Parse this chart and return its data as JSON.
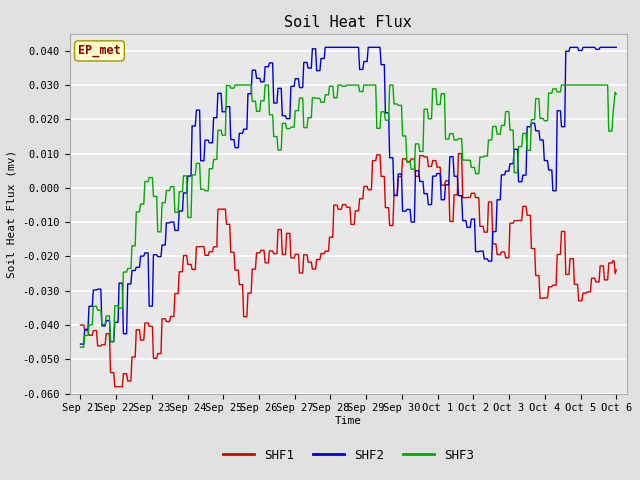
{
  "title": "Soil Heat Flux",
  "ylabel": "Soil Heat Flux (mv)",
  "xlabel": "Time",
  "ylim": [
    -0.06,
    0.045
  ],
  "yticks": [
    -0.06,
    -0.05,
    -0.04,
    -0.03,
    -0.02,
    -0.01,
    0.0,
    0.01,
    0.02,
    0.03,
    0.04
  ],
  "bg_color": "#e0e0e0",
  "plot_bg_color": "#e8e8e8",
  "grid_color": "white",
  "colors": {
    "SHF1": "#dd0000",
    "SHF2": "#0000dd",
    "SHF3": "#00aa00"
  },
  "x_tick_labels": [
    "Sep 21",
    "Sep 22",
    "Sep 23",
    "Sep 24",
    "Sep 25",
    "Sep 26",
    "Sep 27",
    "Sep 28",
    "Sep 29",
    "Sep 30",
    "Oct 1",
    "Oct 2",
    "Oct 3",
    "Oct 4",
    "Oct 5",
    "Oct 6"
  ],
  "annotation_text": "EP_met",
  "annotation_color": "#8B0000",
  "annotation_bg": "#ffffcc",
  "annotation_edge": "#999900"
}
